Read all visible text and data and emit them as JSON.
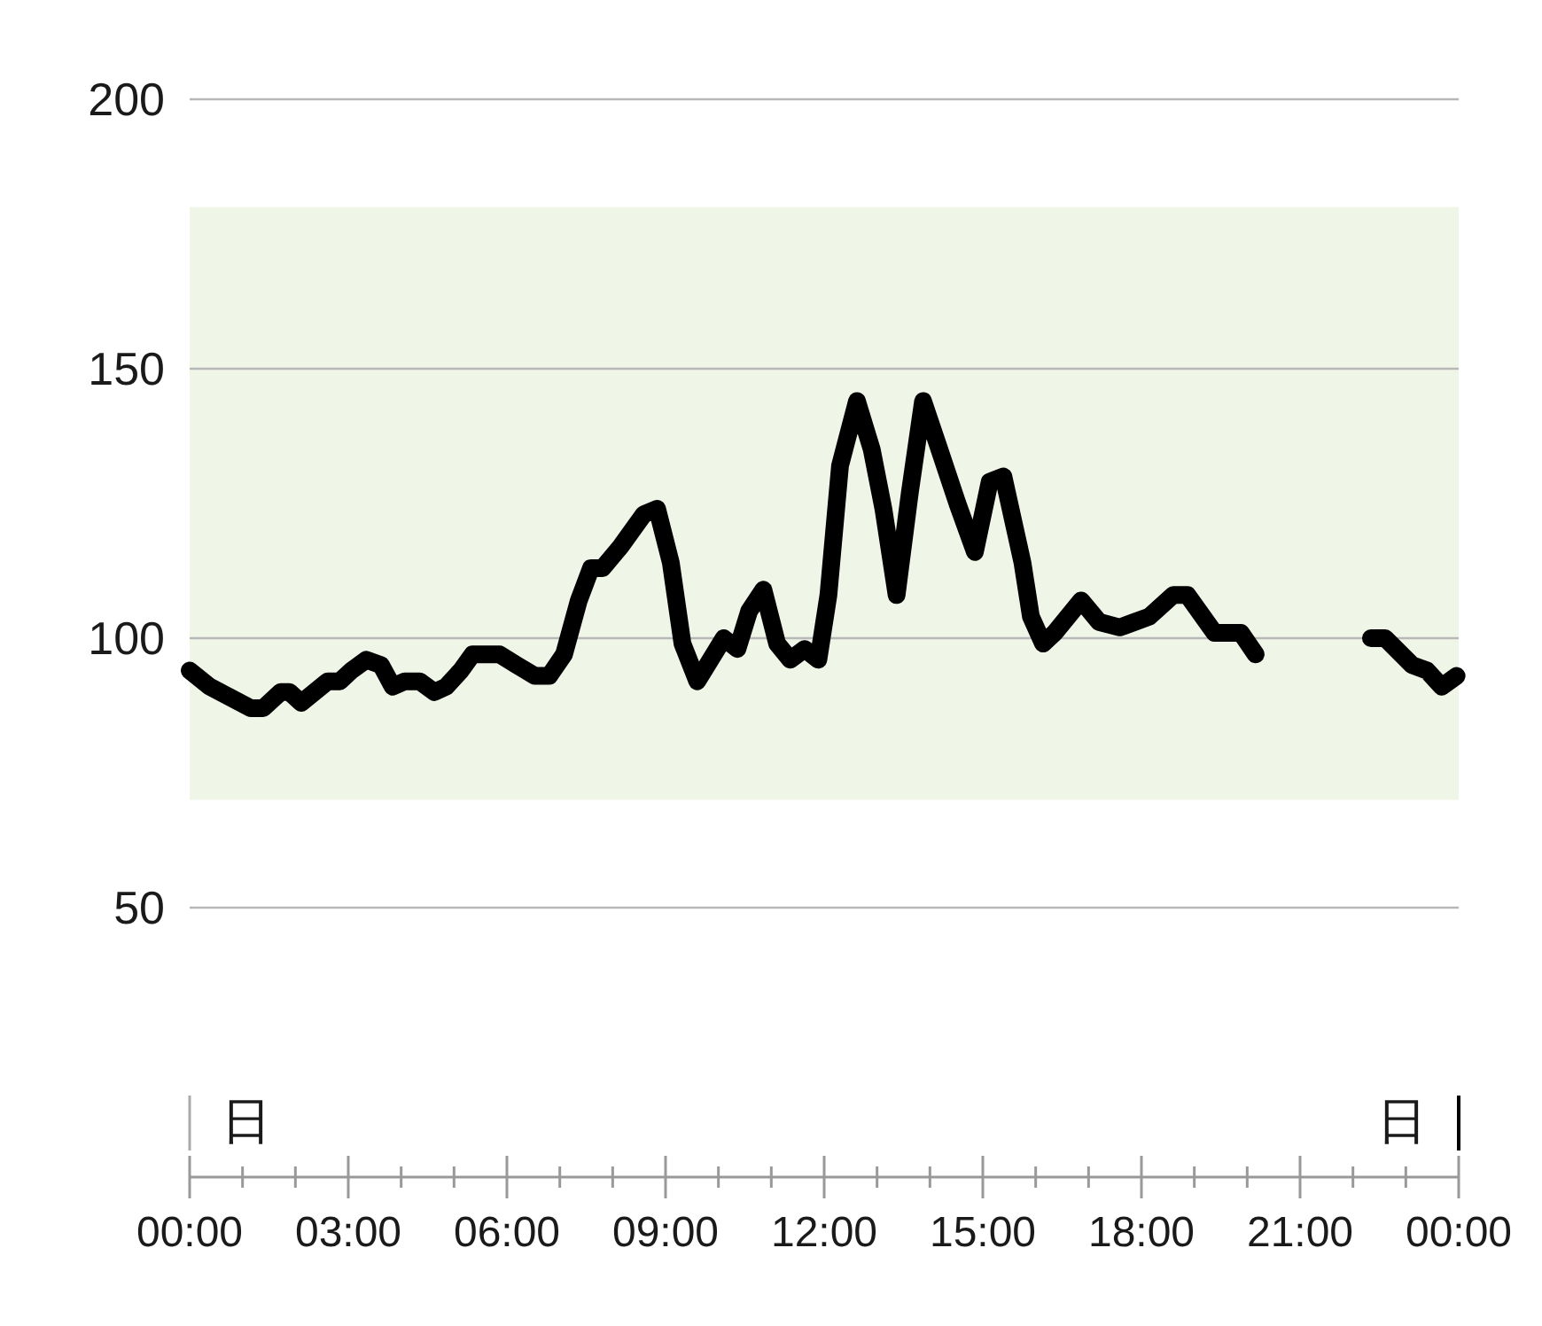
{
  "chart_data": {
    "type": "line",
    "x": [
      0,
      0.38,
      0.77,
      1.16,
      1.39,
      1.72,
      1.89,
      2.11,
      2.61,
      2.84,
      3.06,
      3.34,
      3.62,
      3.84,
      4.07,
      4.35,
      4.63,
      4.85,
      5.13,
      5.35,
      5.86,
      6.19,
      6.53,
      6.8,
      7.08,
      7.36,
      7.59,
      7.81,
      8.15,
      8.59,
      8.84,
      9.1,
      9.32,
      9.6,
      10.1,
      10.36,
      10.58,
      10.85,
      11.11,
      11.36,
      11.63,
      11.89,
      12.08,
      12.3,
      12.62,
      12.9,
      13.12,
      13.37,
      13.62,
      13.87,
      14.18,
      14.52,
      14.85,
      15.13,
      15.39,
      15.75,
      15.91,
      16.14,
      16.36,
      16.86,
      17.2,
      17.59,
      17.87,
      18.15,
      18.6,
      18.87,
      19.38,
      19.6,
      19.88,
      20.16,
      21.25,
      22.34,
      22.61,
      23.12,
      23.4,
      23.68,
      23.96
    ],
    "series": [
      {
        "color": "#000000",
        "values": [
          94,
          91,
          89,
          87,
          87,
          90,
          90,
          88,
          92,
          92,
          94,
          96,
          95,
          91,
          92,
          92,
          90,
          91,
          94,
          97,
          97,
          95,
          93,
          93,
          97,
          107,
          113,
          113,
          117,
          123,
          124,
          114,
          99,
          92,
          100,
          98,
          105,
          109,
          99,
          96,
          98,
          96,
          108,
          132,
          144,
          135,
          124,
          108,
          127,
          144,
          135,
          125,
          116,
          129,
          130,
          114,
          104,
          99,
          101,
          107,
          103,
          102,
          103,
          104,
          108,
          108,
          101,
          101,
          101,
          97,
          null,
          100,
          100,
          95,
          94,
          91,
          93
        ]
      }
    ],
    "xlim": [
      0,
      24
    ],
    "xticks": [
      {
        "value": 0,
        "label": "00:00"
      },
      {
        "value": 1,
        "label": null
      },
      {
        "value": 2,
        "label": null
      },
      {
        "value": 3,
        "label": "03:00"
      },
      {
        "value": 4,
        "label": null
      },
      {
        "value": 5,
        "label": null
      },
      {
        "value": 6,
        "label": "06:00"
      },
      {
        "value": 7,
        "label": null
      },
      {
        "value": 8,
        "label": null
      },
      {
        "value": 9,
        "label": "09:00"
      },
      {
        "value": 10,
        "label": null
      },
      {
        "value": 11,
        "label": null
      },
      {
        "value": 12,
        "label": "12:00"
      },
      {
        "value": 13,
        "label": null
      },
      {
        "value": 14,
        "label": null
      },
      {
        "value": 15,
        "label": "15:00"
      },
      {
        "value": 16,
        "label": null
      },
      {
        "value": 17,
        "label": null
      },
      {
        "value": 18,
        "label": "18:00"
      },
      {
        "value": 19,
        "label": null
      },
      {
        "value": 20,
        "label": null
      },
      {
        "value": 21,
        "label": "21:00"
      },
      {
        "value": 22,
        "label": null
      },
      {
        "value": 23,
        "label": null
      },
      {
        "value": 24,
        "label": "00:00"
      }
    ],
    "ylim": [
      0,
      200
    ],
    "yticks": [
      50,
      100,
      150,
      200
    ],
    "grid": "y",
    "bands": [
      {
        "axis": "y",
        "from": 70,
        "to": 180,
        "color": "#eff5e7"
      }
    ],
    "annotations": [
      "日",
      "日"
    ],
    "marker": "none",
    "line_style": "solid"
  }
}
